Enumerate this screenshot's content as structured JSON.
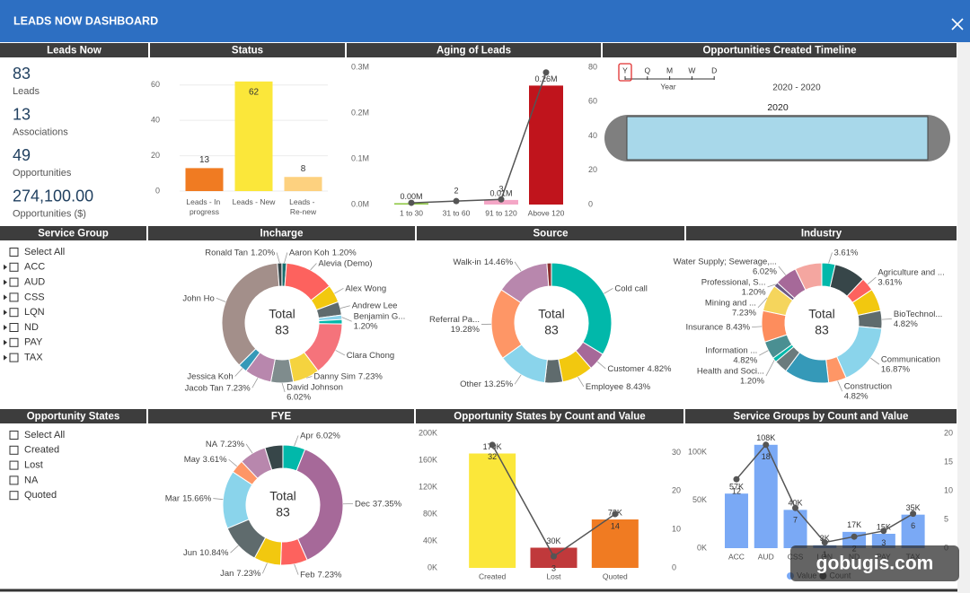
{
  "header": {
    "title": "LEADS NOW DASHBOARD"
  },
  "kpis": {
    "title": "Leads Now",
    "items": [
      {
        "value": 83,
        "label": "Leads"
      },
      {
        "value": 13,
        "label": "Associations"
      },
      {
        "value": 49,
        "label": "Opportunities"
      },
      {
        "value": "274,100.00",
        "label": "Opportunities ($)"
      }
    ]
  },
  "slicers": [
    {
      "title": "Service Group",
      "expandable": true,
      "items": [
        "Select All",
        "ACC",
        "AUD",
        "CSS",
        "LQN",
        "ND",
        "PAY",
        "TAX"
      ]
    },
    {
      "title": "Opportunity States",
      "expandable": false,
      "items": [
        "Select All",
        "Created",
        "Lost",
        "NA",
        "Quoted"
      ]
    }
  ],
  "timeline": {
    "title": "Opportunities Created Timeline",
    "granularity": [
      "Y",
      "Q",
      "M",
      "W",
      "D"
    ],
    "level_label": "Year",
    "range_label": "2020 - 2020",
    "bar_label": "2020"
  },
  "chart_data": [
    {
      "type": "bar",
      "title": "Status",
      "categories": [
        "Leads - In progress",
        "Leads - New",
        "Leads - Re-new"
      ],
      "values": [
        13,
        62,
        8
      ],
      "colors": [
        "#f07b22",
        "#fbe73a",
        "#fdd17f"
      ],
      "ylim": [
        0,
        68
      ],
      "yticks": [
        0,
        20,
        40,
        60
      ],
      "grid": true
    },
    {
      "type": "combo",
      "title": "Aging of Leads",
      "categories": [
        "1 to 30",
        "31 to 60",
        "91 to 120",
        "Above 120"
      ],
      "ylim": [
        0,
        300000
      ],
      "yticks": [
        {
          "value": 0,
          "label": "0.0M"
        },
        {
          "value": 100000,
          "label": "0.1M"
        },
        {
          "value": 200000,
          "label": "0.2M"
        },
        {
          "value": 300000,
          "label": "0.3M"
        }
      ],
      "y2lim": [
        0,
        80
      ],
      "y2ticks": [
        0,
        20,
        40,
        60,
        80
      ],
      "grid": false,
      "series": [
        {
          "kind": "bar",
          "values": [
            3000,
            null,
            10000,
            260000
          ],
          "colors": [
            "#8cc63f",
            null,
            "#f4a6c6",
            "#c0141c"
          ],
          "value_labels": [
            "0.00M",
            null,
            "0.01M",
            "0.26M"
          ]
        },
        {
          "kind": "line",
          "axis": "y2",
          "color": "#555555",
          "values": [
            1,
            2,
            3,
            77
          ],
          "value_labels": [
            null,
            "2",
            "3",
            null
          ]
        }
      ]
    },
    {
      "type": "donut",
      "title": "Incharge",
      "center_label": "Total",
      "center_value": 83,
      "categories": [
        "Aaron Koh",
        "Alevia (Demo)",
        "Alex Wong",
        "Andrew Lee",
        "Benjamin G...",
        null,
        "Clara Chong",
        "Danny Sim",
        "David Johnson",
        "Jacob Tan",
        "Jessica Koh",
        "John Ho",
        "Ronald Tan"
      ],
      "values": [
        1.2,
        13.25,
        4.82,
        3.61,
        1.2,
        1.2,
        14.46,
        7.23,
        6.02,
        7.23,
        2.41,
        36.14,
        1.2
      ],
      "value_labels": [
        "1.20%",
        null,
        null,
        null,
        "1.20%",
        null,
        null,
        "7.23%",
        "6.02%",
        "7.23%",
        null,
        null,
        "1.20%"
      ],
      "colors": [
        "#1a6e6e",
        "#fd625e",
        "#f2c80f",
        "#5f6b6d",
        "#8ad4eb",
        "#01b8aa",
        "#f5737b",
        "#f5d33f",
        "#7f8c8d",
        "#b887ad",
        "#3599b8",
        "#a38f8a",
        "#374649"
      ]
    },
    {
      "type": "donut",
      "title": "Source",
      "center_label": "Total",
      "center_value": 83,
      "categories": [
        "Cold call",
        "Customer",
        "Employee",
        null,
        "Other",
        "Referral Pa...",
        "Walk-in",
        null
      ],
      "values": [
        33.73,
        4.82,
        8.43,
        4.82,
        13.25,
        19.28,
        14.46,
        1.2
      ],
      "value_labels": [
        null,
        "4.82%",
        "8.43%",
        null,
        "13.25%",
        "19.28%",
        "14.46%",
        null
      ],
      "colors": [
        "#01b8aa",
        "#a66999",
        "#f2c80f",
        "#5f6b6d",
        "#8ad4eb",
        "#fe9666",
        "#b887ad",
        "#8b2f2f"
      ]
    },
    {
      "type": "donut",
      "title": "Industry",
      "center_label": "Total",
      "center_value": 83,
      "categories": [
        null,
        null,
        "Agriculture and ...",
        null,
        "BioTechnol...",
        "Communication",
        "Construction",
        null,
        null,
        "Health and Soci...",
        "Information ...",
        "Insurance",
        "Mining and ...",
        "Professional, S...",
        "Water Supply; Sewerage,...",
        null
      ],
      "values": [
        3.61,
        8.43,
        3.61,
        6.02,
        4.82,
        16.87,
        4.82,
        12.05,
        3.61,
        1.2,
        4.82,
        8.43,
        7.23,
        1.2,
        6.02,
        7.23
      ],
      "value_labels": [
        "3.61%",
        null,
        "3.61%",
        null,
        "4.82%",
        "16.87%",
        "4.82%",
        null,
        null,
        "1.20%",
        "4.82%",
        "8.43%",
        "7.23%",
        "1.20%",
        "6.02%",
        null
      ],
      "colors": [
        "#01b8aa",
        "#374649",
        "#fd625e",
        "#f2c80f",
        "#5f6b6d",
        "#8ad4eb",
        "#fe9666",
        "#3599b8",
        "#6b7b7d",
        "#01b8aa",
        "#4a8f92",
        "#fd8d5d",
        "#f5d55c",
        "#6d5a84",
        "#a66999",
        "#f4a6a0"
      ]
    },
    {
      "type": "donut",
      "title": "FYE",
      "center_label": "Total",
      "center_value": 83,
      "categories": [
        "Apr",
        "Dec",
        "Feb",
        "Jan",
        "Jun",
        "Mar",
        "May",
        "NA",
        null
      ],
      "values": [
        6.02,
        37.35,
        7.23,
        7.23,
        10.84,
        15.66,
        3.61,
        7.23,
        4.82
      ],
      "value_labels": [
        "6.02%",
        "37.35%",
        "7.23%",
        "7.23%",
        "10.84%",
        "15.66%",
        "3.61%",
        "7.23%",
        null
      ],
      "colors": [
        "#01b8aa",
        "#a66999",
        "#fd625e",
        "#f2c80f",
        "#5f6b6d",
        "#8ad4eb",
        "#fe9666",
        "#b887ad",
        "#374649"
      ]
    },
    {
      "type": "combo",
      "title": "Opportunity States by Count and Value",
      "categories": [
        "Created",
        "Lost",
        "Quoted"
      ],
      "ylim": [
        0,
        200000
      ],
      "yticks": [
        {
          "value": 0,
          "label": "0K"
        },
        {
          "value": 40000,
          "label": "40K"
        },
        {
          "value": 80000,
          "label": "80K"
        },
        {
          "value": 120000,
          "label": "120K"
        },
        {
          "value": 160000,
          "label": "160K"
        },
        {
          "value": 200000,
          "label": "200K"
        }
      ],
      "y2lim": [
        0,
        35
      ],
      "y2ticks": [
        0,
        10,
        20,
        30
      ],
      "grid": false,
      "series": [
        {
          "kind": "bar",
          "values": [
            170000,
            30000,
            72000
          ],
          "colors": [
            "#fbe73a",
            "#c0393b",
            "#f07b22"
          ],
          "value_labels": [
            "170K",
            "30K",
            "72K"
          ]
        },
        {
          "kind": "line",
          "axis": "y2",
          "color": "#555555",
          "values": [
            32,
            3,
            14
          ]
        }
      ]
    },
    {
      "type": "combo",
      "title": "Service Groups by Count and Value",
      "categories": [
        "ACC",
        "AUD",
        "CSS",
        "LQN",
        "ND",
        "PAY",
        "TAX"
      ],
      "ylim": [
        0,
        120000
      ],
      "yticks": [
        {
          "value": 0,
          "label": "0K"
        },
        {
          "value": 50000,
          "label": "50K"
        },
        {
          "value": 100000,
          "label": "100K"
        }
      ],
      "y2lim": [
        0,
        20
      ],
      "y2ticks": [
        0,
        5,
        10,
        15,
        20
      ],
      "grid": false,
      "series": [
        {
          "kind": "bar",
          "name": "Value",
          "color": "#7aa9f5",
          "values": [
            57000,
            108000,
            40000,
            3000,
            17000,
            15000,
            35000
          ],
          "value_labels": [
            "57K",
            "108K",
            "40K",
            "3K",
            "17K",
            "15K",
            "35K"
          ]
        },
        {
          "kind": "line",
          "name": "Count",
          "axis": "y2",
          "color": "#555555",
          "values": [
            12,
            18,
            7,
            1,
            2,
            3,
            6
          ]
        }
      ]
    }
  ],
  "watermark": "gobugis.com"
}
